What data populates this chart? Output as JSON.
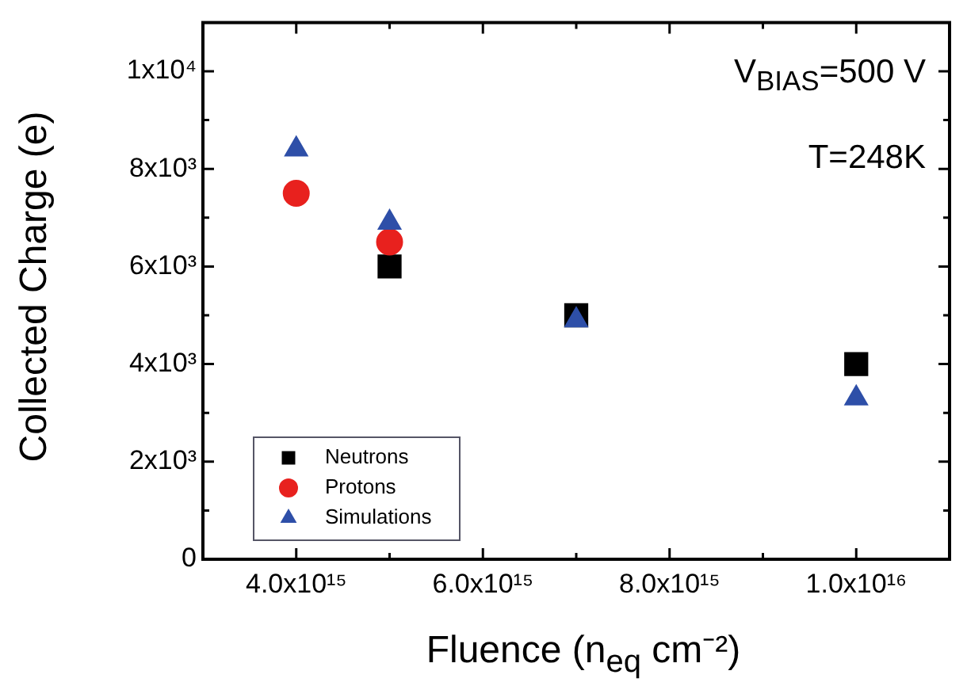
{
  "chart_data": {
    "type": "scatter",
    "xlabel": "Fluence (n$_{eq}$ cm⁻²)",
    "ylabel": "Collected Charge (e)",
    "annotations": [
      "V$_{BIAS}$=500 V",
      "T=248K"
    ],
    "xlim": [
      3000000000000000.0,
      1.1e+16
    ],
    "ylim": [
      0,
      11000
    ],
    "xticks": [
      {
        "value": 4000000000000000.0,
        "label": "4.0x10¹⁵"
      },
      {
        "value": 5000000000000000.0,
        "label": null
      },
      {
        "value": 6000000000000000.0,
        "label": "6.0x10¹⁵"
      },
      {
        "value": 7000000000000000.0,
        "label": null
      },
      {
        "value": 8000000000000000.0,
        "label": "8.0x10¹⁵"
      },
      {
        "value": 9000000000000000.0,
        "label": null
      },
      {
        "value": 1e+16,
        "label": "1.0x10¹⁶"
      }
    ],
    "yticks": [
      0,
      {
        "value": 1000,
        "label": null
      },
      {
        "value": 2000,
        "label": "2x10³"
      },
      {
        "value": 3000,
        "label": null
      },
      {
        "value": 4000,
        "label": "4x10³"
      },
      {
        "value": 5000,
        "label": null
      },
      {
        "value": 6000,
        "label": "6x10³"
      },
      {
        "value": 7000,
        "label": null
      },
      {
        "value": 8000,
        "label": "8x10³"
      },
      {
        "value": 9000,
        "label": null
      },
      {
        "value": 10000,
        "label": "1x10⁴"
      }
    ],
    "grid": false,
    "legend": "bottom left",
    "series": [
      {
        "name": "Neutrons",
        "color": "#000000",
        "marker": "square",
        "x": [
          5000000000000000.0,
          7000000000000000.0,
          1e+16
        ],
        "values": [
          6000,
          5000,
          4000
        ]
      },
      {
        "name": "Protons",
        "color": "#e8211e",
        "marker": "circle",
        "x": [
          4000000000000000.0,
          5000000000000000.0
        ],
        "values": [
          7500,
          6500
        ]
      },
      {
        "name": "Simulations",
        "color": "#2e4fa8",
        "marker": "triangle",
        "x": [
          4000000000000000.0,
          5000000000000000.0,
          7000000000000000.0,
          1e+16
        ],
        "values": [
          8400,
          6900,
          4900,
          3300
        ]
      }
    ]
  }
}
